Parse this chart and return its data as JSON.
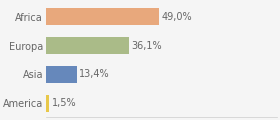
{
  "categories": [
    "America",
    "Asia",
    "Europa",
    "Africa"
  ],
  "values": [
    1.5,
    13.4,
    36.1,
    49.0
  ],
  "bar_colors": [
    "#e8c84a",
    "#6688bb",
    "#aabb88",
    "#e8a87c"
  ],
  "labels": [
    "1,5%",
    "13,4%",
    "36,1%",
    "49,0%"
  ],
  "xlim": [
    0,
    100
  ],
  "background_color": "#f5f5f5",
  "bar_height": 0.6,
  "label_fontsize": 7.0,
  "tick_fontsize": 7.0
}
